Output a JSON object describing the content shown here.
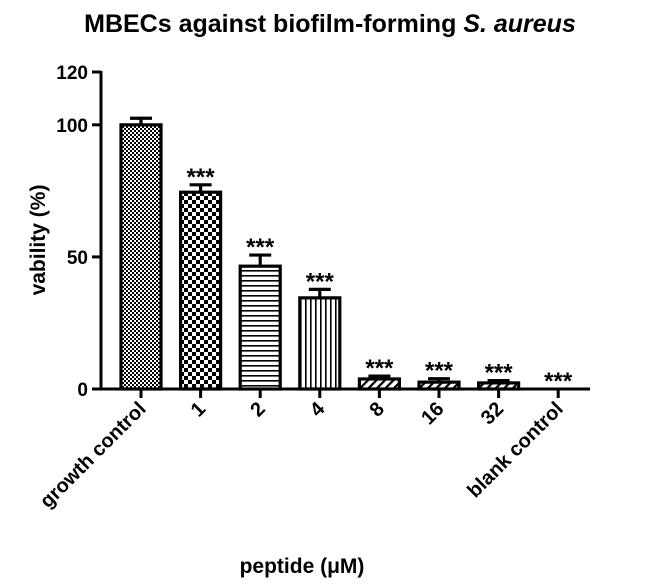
{
  "chart_data": {
    "type": "bar",
    "title": "MBECs against biofilm-forming ",
    "title_italic": "S. aureus",
    "xlabel": "peptide (μM)",
    "ylabel": "vability (%)",
    "ylim": [
      0,
      120
    ],
    "yticks": [
      "0",
      "50",
      "100",
      "120"
    ],
    "categories": [
      "growth control",
      "1",
      "2",
      "4",
      "8",
      "16",
      "32",
      "blank control"
    ],
    "values": [
      100,
      74.5,
      46.5,
      34.5,
      3.8,
      2.6,
      2.3,
      0
    ],
    "errors": [
      2.5,
      2.8,
      4.2,
      3.2,
      1.1,
      1.3,
      0.9,
      0
    ],
    "significance": [
      "",
      "***",
      "***",
      "***",
      "***",
      "***",
      "***",
      "***"
    ],
    "patterns": [
      "fine-checker",
      "large-checker",
      "horizontal-lines",
      "vertical-lines",
      "diagonal-lines",
      "diagonal-lines",
      "diagonal-lines",
      "none"
    ],
    "grid": false,
    "legend": "none",
    "colors": {
      "stroke": "#000000",
      "fill": "#ffffff"
    }
  }
}
